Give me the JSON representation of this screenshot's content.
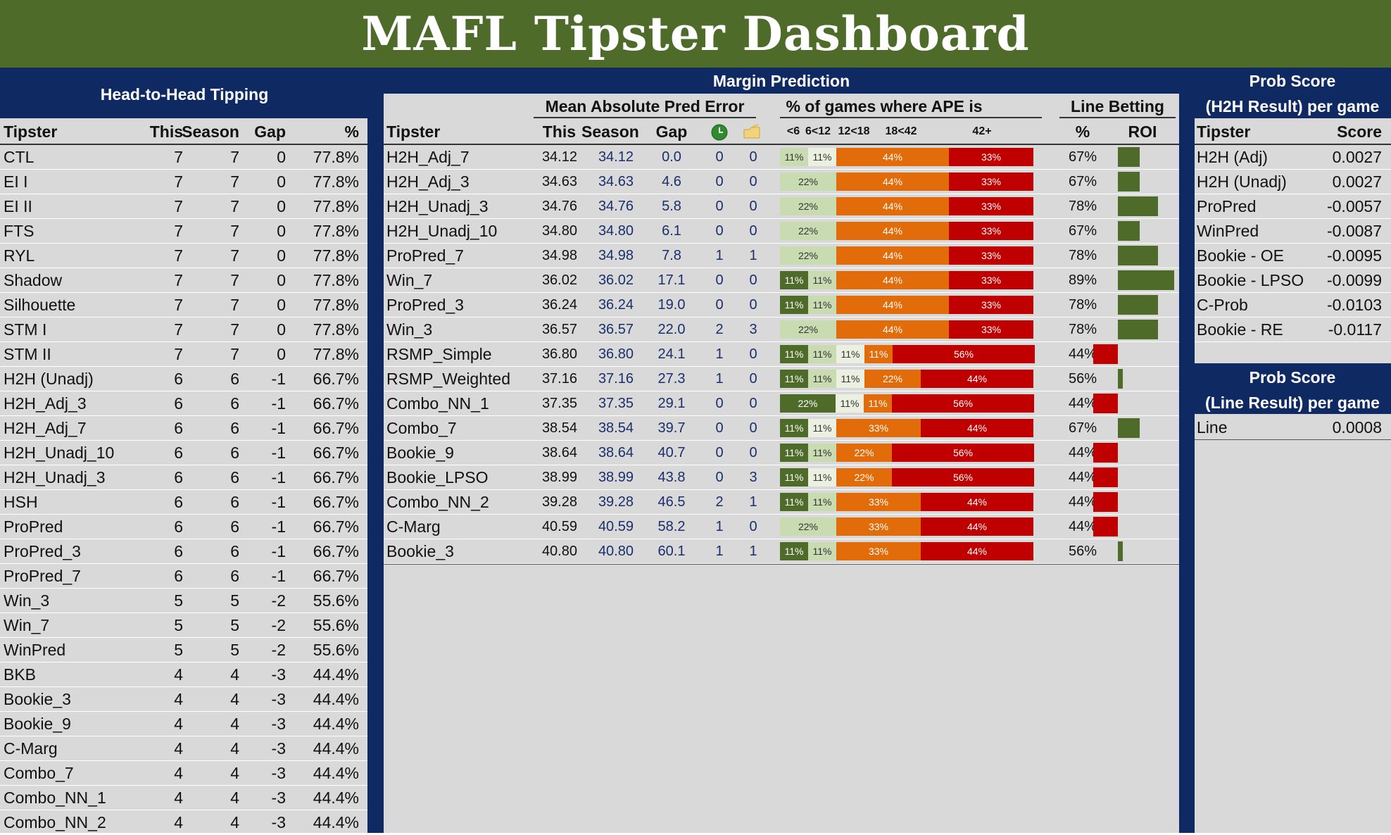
{
  "title": "MAFL Tipster Dashboard",
  "colors": {
    "title_bg": "#4e6b2a",
    "navy": "#0f2a63",
    "panel": "#d9d9d9",
    "ape_lt6": "#4e6b2a",
    "ape_6_12": "#c9dbb1",
    "ape_12_18": "#ebf0e0",
    "ape_18_42": "#e36c0a",
    "ape_42plus": "#c00000",
    "roi_pos": "#4e6b2a",
    "roi_neg": "#c00000"
  },
  "h2h": {
    "title": "Head-to-Head Tipping",
    "headers": [
      "Tipster",
      "This",
      "Season",
      "Gap",
      "%"
    ],
    "rows": [
      [
        "CTL",
        "7",
        "7",
        "0",
        "77.8%"
      ],
      [
        "EI I",
        "7",
        "7",
        "0",
        "77.8%"
      ],
      [
        "EI II",
        "7",
        "7",
        "0",
        "77.8%"
      ],
      [
        "FTS",
        "7",
        "7",
        "0",
        "77.8%"
      ],
      [
        "RYL",
        "7",
        "7",
        "0",
        "77.8%"
      ],
      [
        "Shadow",
        "7",
        "7",
        "0",
        "77.8%"
      ],
      [
        "Silhouette",
        "7",
        "7",
        "0",
        "77.8%"
      ],
      [
        "STM I",
        "7",
        "7",
        "0",
        "77.8%"
      ],
      [
        "STM II",
        "7",
        "7",
        "0",
        "77.8%"
      ],
      [
        "H2H (Unadj)",
        "6",
        "6",
        "-1",
        "66.7%"
      ],
      [
        "H2H_Adj_3",
        "6",
        "6",
        "-1",
        "66.7%"
      ],
      [
        "H2H_Adj_7",
        "6",
        "6",
        "-1",
        "66.7%"
      ],
      [
        "H2H_Unadj_10",
        "6",
        "6",
        "-1",
        "66.7%"
      ],
      [
        "H2H_Unadj_3",
        "6",
        "6",
        "-1",
        "66.7%"
      ],
      [
        "HSH",
        "6",
        "6",
        "-1",
        "66.7%"
      ],
      [
        "ProPred",
        "6",
        "6",
        "-1",
        "66.7%"
      ],
      [
        "ProPred_3",
        "6",
        "6",
        "-1",
        "66.7%"
      ],
      [
        "ProPred_7",
        "6",
        "6",
        "-1",
        "66.7%"
      ],
      [
        "Win_3",
        "5",
        "5",
        "-2",
        "55.6%"
      ],
      [
        "Win_7",
        "5",
        "5",
        "-2",
        "55.6%"
      ],
      [
        "WinPred",
        "5",
        "5",
        "-2",
        "55.6%"
      ],
      [
        "BKB",
        "4",
        "4",
        "-3",
        "44.4%"
      ],
      [
        "Bookie_3",
        "4",
        "4",
        "-3",
        "44.4%"
      ],
      [
        "Bookie_9",
        "4",
        "4",
        "-3",
        "44.4%"
      ],
      [
        "C-Marg",
        "4",
        "4",
        "-3",
        "44.4%"
      ],
      [
        "Combo_7",
        "4",
        "4",
        "-3",
        "44.4%"
      ],
      [
        "Combo_NN_1",
        "4",
        "4",
        "-3",
        "44.4%"
      ],
      [
        "Combo_NN_2",
        "4",
        "4",
        "-3",
        "44.4%"
      ]
    ]
  },
  "margin": {
    "title": "Margin Prediction",
    "mape_title": "Mean Absolute Pred Error",
    "ape_title": "% of games where APE is",
    "line_title": "Line Betting",
    "headers": {
      "tipster": "Tipster",
      "this": "This",
      "season": "Season",
      "gap": "Gap",
      "icon1": "green-clock-icon",
      "icon2": "folder-icon",
      "ape_bins": [
        "<6",
        "6<12",
        "12<18",
        "18<42",
        "42+"
      ],
      "pct": "%",
      "roi": "ROI"
    },
    "rows": [
      {
        "name": "H2H_Adj_7",
        "this": "34.12",
        "season": "34.12",
        "gap": "0.0",
        "i1": "0",
        "i2": "0",
        "ape": [
          0,
          11,
          11,
          44,
          33
        ],
        "line_pct": "67%",
        "roi": 0.13
      },
      {
        "name": "H2H_Adj_3",
        "this": "34.63",
        "season": "34.63",
        "gap": "4.6",
        "i1": "0",
        "i2": "0",
        "ape": [
          0,
          22,
          0,
          44,
          33
        ],
        "line_pct": "67%",
        "roi": 0.13
      },
      {
        "name": "H2H_Unadj_3",
        "this": "34.76",
        "season": "34.76",
        "gap": "5.8",
        "i1": "0",
        "i2": "0",
        "ape": [
          0,
          22,
          0,
          44,
          33
        ],
        "line_pct": "78%",
        "roi": 0.24
      },
      {
        "name": "H2H_Unadj_10",
        "this": "34.80",
        "season": "34.80",
        "gap": "6.1",
        "i1": "0",
        "i2": "0",
        "ape": [
          0,
          22,
          0,
          44,
          33
        ],
        "line_pct": "67%",
        "roi": 0.13
      },
      {
        "name": "ProPred_7",
        "this": "34.98",
        "season": "34.98",
        "gap": "7.8",
        "i1": "1",
        "i2": "1",
        "ape": [
          0,
          22,
          0,
          44,
          33
        ],
        "line_pct": "78%",
        "roi": 0.24
      },
      {
        "name": "Win_7",
        "this": "36.02",
        "season": "36.02",
        "gap": "17.1",
        "i1": "0",
        "i2": "0",
        "ape": [
          11,
          11,
          0,
          44,
          33
        ],
        "line_pct": "89%",
        "roi": 0.34
      },
      {
        "name": "ProPred_3",
        "this": "36.24",
        "season": "36.24",
        "gap": "19.0",
        "i1": "0",
        "i2": "0",
        "ape": [
          11,
          11,
          0,
          44,
          33
        ],
        "line_pct": "78%",
        "roi": 0.24
      },
      {
        "name": "Win_3",
        "this": "36.57",
        "season": "36.57",
        "gap": "22.0",
        "i1": "2",
        "i2": "3",
        "ape": [
          0,
          22,
          0,
          44,
          33
        ],
        "line_pct": "78%",
        "roi": 0.24
      },
      {
        "name": "RSMP_Simple",
        "this": "36.80",
        "season": "36.80",
        "gap": "24.1",
        "i1": "1",
        "i2": "0",
        "ape": [
          11,
          11,
          11,
          11,
          56
        ],
        "line_pct": "44%",
        "roi": -0.15
      },
      {
        "name": "RSMP_Weighted",
        "this": "37.16",
        "season": "37.16",
        "gap": "27.3",
        "i1": "1",
        "i2": "0",
        "ape": [
          11,
          11,
          11,
          22,
          44
        ],
        "line_pct": "56%",
        "roi": 0.03
      },
      {
        "name": "Combo_NN_1",
        "this": "37.35",
        "season": "37.35",
        "gap": "29.1",
        "i1": "0",
        "i2": "0",
        "ape": [
          22,
          0,
          11,
          11,
          56
        ],
        "line_pct": "44%",
        "roi": -0.15
      },
      {
        "name": "Combo_7",
        "this": "38.54",
        "season": "38.54",
        "gap": "39.7",
        "i1": "0",
        "i2": "0",
        "ape": [
          11,
          0,
          11,
          33,
          44
        ],
        "line_pct": "67%",
        "roi": 0.13
      },
      {
        "name": "Bookie_9",
        "this": "38.64",
        "season": "38.64",
        "gap": "40.7",
        "i1": "0",
        "i2": "0",
        "ape": [
          11,
          11,
          0,
          22,
          56
        ],
        "line_pct": "44%",
        "roi": -0.15
      },
      {
        "name": "Bookie_LPSO",
        "this": "38.99",
        "season": "38.99",
        "gap": "43.8",
        "i1": "0",
        "i2": "3",
        "ape": [
          11,
          0,
          11,
          22,
          56
        ],
        "line_pct": "44%",
        "roi": -0.15
      },
      {
        "name": "Combo_NN_2",
        "this": "39.28",
        "season": "39.28",
        "gap": "46.5",
        "i1": "2",
        "i2": "1",
        "ape": [
          11,
          11,
          0,
          33,
          44
        ],
        "line_pct": "44%",
        "roi": -0.15
      },
      {
        "name": "C-Marg",
        "this": "40.59",
        "season": "40.59",
        "gap": "58.2",
        "i1": "1",
        "i2": "0",
        "ape": [
          0,
          22,
          0,
          33,
          44
        ],
        "line_pct": "44%",
        "roi": -0.15
      },
      {
        "name": "Bookie_3",
        "this": "40.80",
        "season": "40.80",
        "gap": "60.1",
        "i1": "1",
        "i2": "1",
        "ape": [
          11,
          11,
          0,
          33,
          44
        ],
        "line_pct": "56%",
        "roi": 0.03
      }
    ]
  },
  "prob_h2h": {
    "title_line1": "Prob Score",
    "title_line2": "(H2H Result) per game",
    "headers": [
      "Tipster",
      "Score"
    ],
    "rows": [
      [
        "H2H (Adj)",
        "0.0027"
      ],
      [
        "H2H (Unadj)",
        "0.0027"
      ],
      [
        "ProPred",
        "-0.0057"
      ],
      [
        "WinPred",
        "-0.0087"
      ],
      [
        "Bookie - OE",
        "-0.0095"
      ],
      [
        "Bookie - LPSO",
        "-0.0099"
      ],
      [
        "C-Prob",
        "-0.0103"
      ],
      [
        "Bookie - RE",
        "-0.0117"
      ]
    ]
  },
  "prob_line": {
    "title_line1": "Prob Score",
    "title_line2": "(Line Result) per game",
    "rows": [
      [
        "Line",
        "0.0008"
      ]
    ]
  }
}
